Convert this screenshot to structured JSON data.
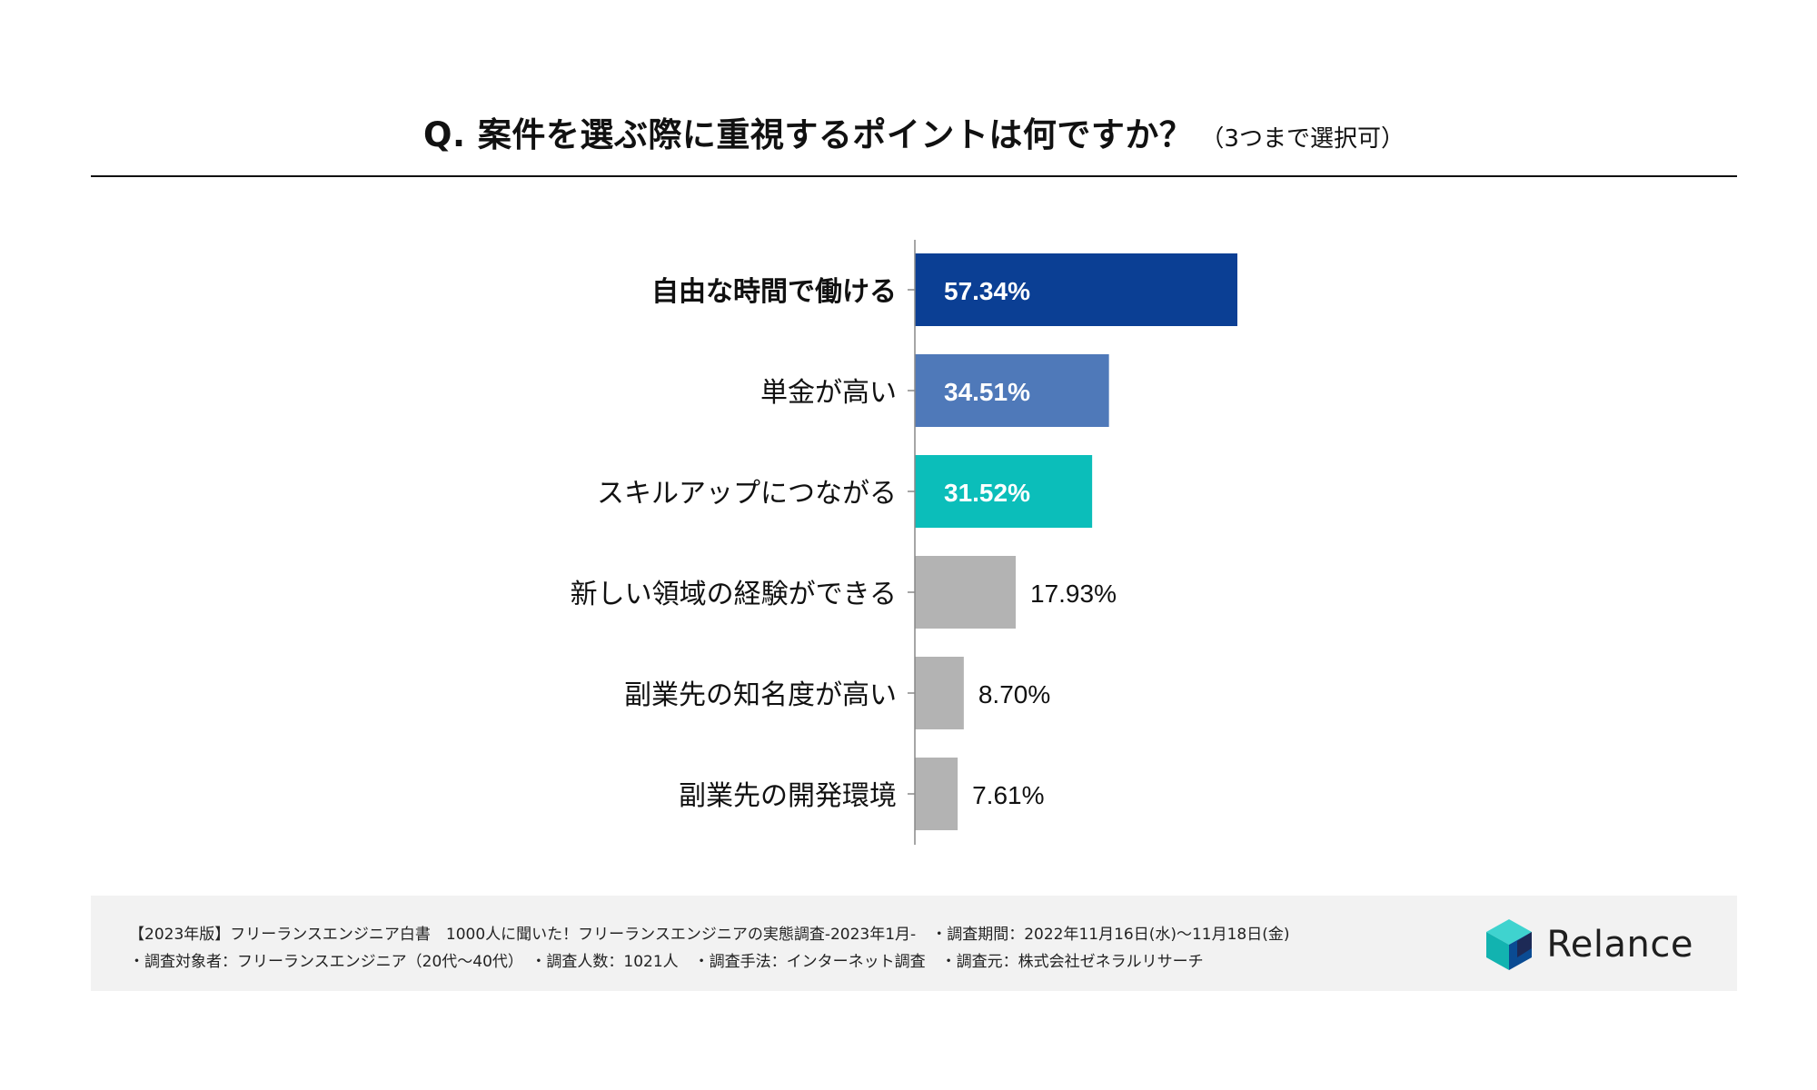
{
  "title": {
    "main": "Q. 案件を選ぶ際に重視するポイントは何ですか？",
    "sub": "（3つまで選択可）"
  },
  "chart_data": {
    "type": "bar",
    "orientation": "horizontal",
    "categories": [
      "自由な時間で働ける",
      "単金が高い",
      "スキルアップにつながる",
      "新しい領域の経験ができる",
      "副業先の知名度が高い",
      "副業先の開発環境"
    ],
    "values": [
      57.34,
      34.51,
      31.52,
      17.93,
      8.7,
      7.61
    ],
    "value_labels": [
      "57.34%",
      "34.51%",
      "31.52%",
      "17.93%",
      "8.70%",
      "7.61%"
    ],
    "unit": "%",
    "colors": [
      "#0b3f94",
      "#4f79b9",
      "#0bbeba",
      "#b3b3b3",
      "#b3b3b3",
      "#b3b3b3"
    ],
    "label_inside": [
      true,
      true,
      true,
      false,
      false,
      false
    ],
    "title": "Q. 案件を選ぶ際に重視するポイントは何ですか？（3つまで選択可）",
    "xlim": [
      0,
      100
    ],
    "grid": false,
    "legend": "none"
  },
  "footer": {
    "line1": "【2023年版】フリーランスエンジニア白書　1000人に聞いた！フリーランスエンジニアの実態調査-2023年1月-　・調査期間：2022年11月16日(水)〜11月18日(金)",
    "line2": "・調査対象者：フリーランスエンジニア（20代〜40代）　・調査人数：1021人　・調査手法：インターネット調査　・調査元：株式会社ゼネラルリサーチ",
    "brand": "Relance",
    "brand_icon": "cube-logo-icon"
  }
}
